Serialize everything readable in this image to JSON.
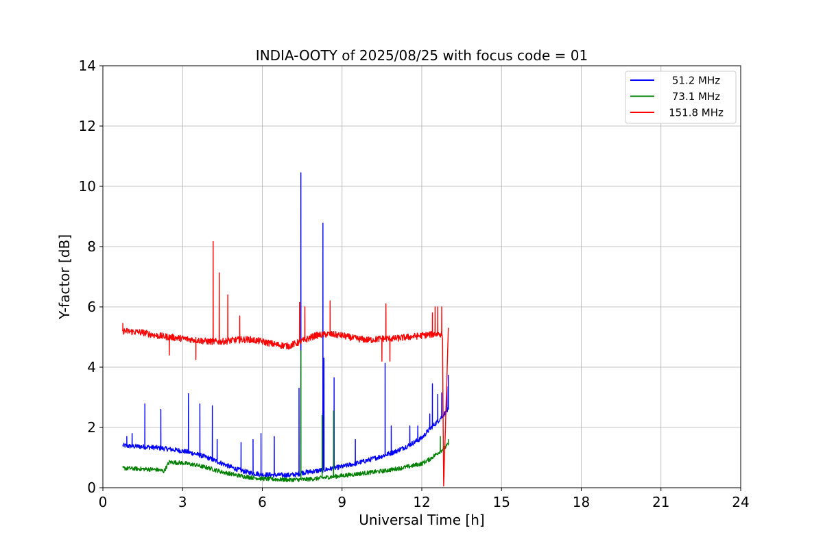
{
  "chart_data": {
    "type": "line",
    "title": "INDIA-OOTY of 2025/08/25 with focus code = 01",
    "xlabel": "Universal Time [h]",
    "ylabel": "Y-factor [dB]",
    "xlim": [
      0,
      24
    ],
    "ylim": [
      0,
      14
    ],
    "xticks": [
      0,
      3,
      6,
      9,
      12,
      15,
      18,
      21,
      24
    ],
    "yticks": [
      0,
      2,
      4,
      6,
      8,
      10,
      12,
      14
    ],
    "grid": true,
    "legend_position": "top-right",
    "series": [
      {
        "name": "51.2 MHz",
        "color": "#0000ff",
        "x": [
          0.75,
          1.0,
          1.5,
          2.0,
          2.5,
          3.0,
          3.5,
          4.0,
          4.5,
          5.0,
          5.5,
          6.0,
          6.5,
          7.0,
          7.3,
          7.5,
          8.0,
          8.5,
          9.0,
          9.5,
          10.0,
          10.5,
          11.0,
          11.5,
          12.0,
          12.3,
          12.6,
          12.9,
          13.0
        ],
        "y": [
          1.4,
          1.38,
          1.36,
          1.33,
          1.28,
          1.22,
          1.12,
          0.98,
          0.8,
          0.62,
          0.5,
          0.44,
          0.42,
          0.42,
          0.44,
          0.5,
          0.55,
          0.62,
          0.7,
          0.8,
          0.92,
          1.05,
          1.2,
          1.4,
          1.65,
          1.95,
          2.2,
          2.5,
          2.6
        ],
        "noise": 0.08,
        "spikes": [
          [
            0.9,
            1.7
          ],
          [
            1.1,
            1.8
          ],
          [
            1.58,
            2.78
          ],
          [
            2.18,
            2.6
          ],
          [
            3.22,
            3.12
          ],
          [
            3.65,
            2.78
          ],
          [
            4.12,
            2.72
          ],
          [
            4.3,
            1.6
          ],
          [
            5.2,
            1.5
          ],
          [
            5.65,
            1.6
          ],
          [
            5.95,
            1.8
          ],
          [
            6.45,
            1.7
          ],
          [
            7.38,
            3.3
          ],
          [
            7.45,
            10.45
          ],
          [
            8.28,
            8.78
          ],
          [
            8.32,
            4.3
          ],
          [
            8.7,
            3.65
          ],
          [
            9.5,
            1.6
          ],
          [
            10.62,
            4.13
          ],
          [
            10.85,
            2.05
          ],
          [
            11.55,
            2.05
          ],
          [
            11.85,
            2.05
          ],
          [
            12.3,
            2.45
          ],
          [
            12.4,
            3.45
          ],
          [
            12.6,
            3.1
          ],
          [
            12.75,
            3.15
          ],
          [
            12.95,
            3.35
          ],
          [
            13.0,
            3.73
          ]
        ]
      },
      {
        "name": "73.1 MHz",
        "color": "#008000",
        "x": [
          0.75,
          1.5,
          2.0,
          2.3,
          2.5,
          3.0,
          3.5,
          4.0,
          4.5,
          5.0,
          5.5,
          6.0,
          6.5,
          7.0,
          7.5,
          8.0,
          8.5,
          9.0,
          9.5,
          10.0,
          10.5,
          11.0,
          11.5,
          12.0,
          12.3,
          12.6,
          12.9,
          13.0
        ],
        "y": [
          0.65,
          0.62,
          0.6,
          0.55,
          0.85,
          0.82,
          0.75,
          0.65,
          0.52,
          0.42,
          0.35,
          0.3,
          0.28,
          0.26,
          0.27,
          0.3,
          0.35,
          0.4,
          0.45,
          0.5,
          0.55,
          0.62,
          0.7,
          0.8,
          0.95,
          1.15,
          1.35,
          1.45
        ],
        "noise": 0.07,
        "spikes": [
          [
            7.45,
            4.55
          ],
          [
            8.25,
            2.4
          ],
          [
            8.68,
            2.55
          ],
          [
            12.7,
            1.7
          ],
          [
            13.0,
            1.6
          ]
        ]
      },
      {
        "name": "151.8 MHz",
        "color": "#ff0000",
        "x": [
          0.75,
          1.5,
          2.0,
          2.5,
          3.0,
          3.5,
          4.0,
          4.5,
          5.0,
          5.5,
          6.0,
          6.5,
          7.0,
          7.3,
          7.6,
          8.0,
          8.5,
          9.0,
          9.5,
          10.0,
          10.5,
          11.0,
          11.5,
          12.0,
          12.5,
          12.78,
          12.82,
          13.0
        ],
        "y": [
          5.2,
          5.15,
          5.05,
          5.0,
          4.95,
          4.9,
          4.85,
          4.85,
          4.9,
          4.92,
          4.85,
          4.75,
          4.7,
          4.8,
          4.9,
          5.05,
          5.1,
          5.05,
          4.95,
          4.9,
          4.95,
          4.95,
          5.0,
          5.05,
          5.1,
          5.1,
          0.0,
          5.2
        ],
        "noise": 0.11,
        "spikes": [
          [
            0.75,
            5.45
          ],
          [
            2.5,
            4.4
          ],
          [
            3.5,
            4.25
          ],
          [
            4.15,
            8.17
          ],
          [
            4.38,
            7.13
          ],
          [
            4.7,
            6.4
          ],
          [
            5.15,
            5.7
          ],
          [
            7.4,
            6.15
          ],
          [
            7.6,
            6.0
          ],
          [
            8.55,
            6.2
          ],
          [
            10.5,
            4.2
          ],
          [
            10.65,
            6.1
          ],
          [
            10.8,
            4.2
          ],
          [
            12.4,
            5.8
          ],
          [
            12.5,
            6.0
          ],
          [
            12.6,
            6.0
          ],
          [
            12.75,
            6.0
          ]
        ]
      }
    ]
  }
}
